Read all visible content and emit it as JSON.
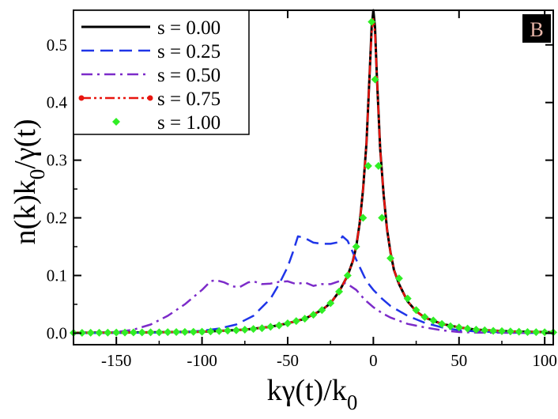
{
  "chart_data": {
    "type": "line",
    "panel_label": "B",
    "xlabel": "kγ(t)/k",
    "xlabel_sub": "0",
    "ylabel": "n(k)k",
    "ylabel_sub": "0",
    "ylabel_tail": "/γ(t)",
    "xlim": [
      -175,
      105
    ],
    "ylim": [
      -0.02,
      0.56
    ],
    "xticks": [
      -150,
      -100,
      -50,
      0,
      50,
      100
    ],
    "xtick_labels": [
      "-150",
      "-100",
      "-50",
      "0",
      "50",
      "100"
    ],
    "yticks": [
      0.0,
      0.1,
      0.2,
      0.3,
      0.4,
      0.5
    ],
    "ytick_labels": [
      "0.0",
      "0.1",
      "0.2",
      "0.3",
      "0.4",
      "0.5"
    ],
    "legend_position": "top-left",
    "series": [
      {
        "name": "s = 0.00",
        "color": "#000000",
        "style": "solid",
        "points": [
          [
            -175,
            0.0005
          ],
          [
            -150,
            0.001
          ],
          [
            -125,
            0.0015
          ],
          [
            -100,
            0.0025
          ],
          [
            -75,
            0.006
          ],
          [
            -60,
            0.011
          ],
          [
            -50,
            0.017
          ],
          [
            -40,
            0.025
          ],
          [
            -30,
            0.04
          ],
          [
            -25,
            0.052
          ],
          [
            -20,
            0.072
          ],
          [
            -15,
            0.1
          ],
          [
            -12,
            0.125
          ],
          [
            -10,
            0.15
          ],
          [
            -8,
            0.19
          ],
          [
            -6,
            0.25
          ],
          [
            -4,
            0.33
          ],
          [
            -2,
            0.46
          ],
          [
            -1,
            0.53
          ],
          [
            0,
            0.56
          ],
          [
            1,
            0.53
          ],
          [
            2,
            0.45
          ],
          [
            4,
            0.32
          ],
          [
            6,
            0.24
          ],
          [
            8,
            0.18
          ],
          [
            10,
            0.14
          ],
          [
            12,
            0.11
          ],
          [
            15,
            0.085
          ],
          [
            20,
            0.055
          ],
          [
            25,
            0.038
          ],
          [
            30,
            0.027
          ],
          [
            40,
            0.016
          ],
          [
            50,
            0.01
          ],
          [
            60,
            0.006
          ],
          [
            80,
            0.003
          ],
          [
            105,
            0.0015
          ]
        ]
      },
      {
        "name": "s = 0.25",
        "color": "#1f35e8",
        "style": "dashed",
        "points": [
          [
            -175,
            0.0
          ],
          [
            -150,
            0.0005
          ],
          [
            -125,
            0.001
          ],
          [
            -110,
            0.002
          ],
          [
            -100,
            0.004
          ],
          [
            -90,
            0.008
          ],
          [
            -80,
            0.015
          ],
          [
            -70,
            0.03
          ],
          [
            -60,
            0.06
          ],
          [
            -55,
            0.085
          ],
          [
            -50,
            0.115
          ],
          [
            -47,
            0.14
          ],
          [
            -44,
            0.168
          ],
          [
            -40,
            0.165
          ],
          [
            -35,
            0.157
          ],
          [
            -30,
            0.155
          ],
          [
            -25,
            0.155
          ],
          [
            -20,
            0.158
          ],
          [
            -18,
            0.168
          ],
          [
            -15,
            0.16
          ],
          [
            -12,
            0.14
          ],
          [
            -8,
            0.115
          ],
          [
            -4,
            0.09
          ],
          [
            0,
            0.075
          ],
          [
            5,
            0.06
          ],
          [
            10,
            0.047
          ],
          [
            20,
            0.03
          ],
          [
            30,
            0.018
          ],
          [
            40,
            0.01
          ],
          [
            50,
            0.005
          ],
          [
            60,
            0.003
          ],
          [
            80,
            0.001
          ],
          [
            105,
            0.0
          ]
        ]
      },
      {
        "name": "s = 0.50",
        "color": "#7c2bc9",
        "style": "dashdot",
        "points": [
          [
            -175,
            0.0
          ],
          [
            -150,
            0.002
          ],
          [
            -140,
            0.006
          ],
          [
            -130,
            0.015
          ],
          [
            -120,
            0.03
          ],
          [
            -110,
            0.05
          ],
          [
            -100,
            0.075
          ],
          [
            -95,
            0.09
          ],
          [
            -92,
            0.092
          ],
          [
            -87,
            0.088
          ],
          [
            -82,
            0.081
          ],
          [
            -78,
            0.08
          ],
          [
            -73,
            0.088
          ],
          [
            -70,
            0.09
          ],
          [
            -65,
            0.085
          ],
          [
            -60,
            0.086
          ],
          [
            -55,
            0.089
          ],
          [
            -50,
            0.09
          ],
          [
            -45,
            0.085
          ],
          [
            -40,
            0.088
          ],
          [
            -35,
            0.082
          ],
          [
            -30,
            0.085
          ],
          [
            -25,
            0.085
          ],
          [
            -20,
            0.09
          ],
          [
            -15,
            0.085
          ],
          [
            -10,
            0.075
          ],
          [
            -5,
            0.058
          ],
          [
            0,
            0.045
          ],
          [
            5,
            0.035
          ],
          [
            10,
            0.027
          ],
          [
            20,
            0.016
          ],
          [
            30,
            0.01
          ],
          [
            40,
            0.005
          ],
          [
            50,
            0.002
          ],
          [
            60,
            0.001
          ],
          [
            80,
            0.0005
          ],
          [
            105,
            0.0
          ]
        ]
      },
      {
        "name": "s = 0.75",
        "color": "#e8150f",
        "style": "dashdotdot",
        "points": [
          [
            -175,
            0.0005
          ],
          [
            -150,
            0.001
          ],
          [
            -125,
            0.0015
          ],
          [
            -100,
            0.0025
          ],
          [
            -75,
            0.006
          ],
          [
            -60,
            0.011
          ],
          [
            -50,
            0.017
          ],
          [
            -40,
            0.025
          ],
          [
            -30,
            0.04
          ],
          [
            -25,
            0.052
          ],
          [
            -20,
            0.072
          ],
          [
            -15,
            0.1
          ],
          [
            -12,
            0.125
          ],
          [
            -10,
            0.15
          ],
          [
            -8,
            0.19
          ],
          [
            -6,
            0.25
          ],
          [
            -4,
            0.33
          ],
          [
            -2,
            0.46
          ],
          [
            -1,
            0.52
          ],
          [
            0,
            0.545
          ],
          [
            1,
            0.52
          ],
          [
            2,
            0.45
          ],
          [
            4,
            0.32
          ],
          [
            6,
            0.24
          ],
          [
            8,
            0.18
          ],
          [
            10,
            0.14
          ],
          [
            12,
            0.11
          ],
          [
            15,
            0.085
          ],
          [
            20,
            0.055
          ],
          [
            25,
            0.038
          ],
          [
            30,
            0.027
          ],
          [
            40,
            0.016
          ],
          [
            50,
            0.01
          ],
          [
            60,
            0.006
          ],
          [
            80,
            0.003
          ],
          [
            105,
            0.0015
          ]
        ]
      },
      {
        "name": "s = 1.00",
        "color": "#30ee25",
        "style": "markers",
        "points": [
          [
            -175,
            0.0005
          ],
          [
            -170,
            0.0006
          ],
          [
            -165,
            0.0007
          ],
          [
            -160,
            0.0008
          ],
          [
            -155,
            0.0009
          ],
          [
            -150,
            0.001
          ],
          [
            -145,
            0.0011
          ],
          [
            -140,
            0.0012
          ],
          [
            -135,
            0.0013
          ],
          [
            -130,
            0.0014
          ],
          [
            -125,
            0.0015
          ],
          [
            -120,
            0.0017
          ],
          [
            -115,
            0.0019
          ],
          [
            -110,
            0.0021
          ],
          [
            -105,
            0.0023
          ],
          [
            -100,
            0.0025
          ],
          [
            -95,
            0.003
          ],
          [
            -90,
            0.0036
          ],
          [
            -85,
            0.0043
          ],
          [
            -80,
            0.005
          ],
          [
            -75,
            0.006
          ],
          [
            -70,
            0.0072
          ],
          [
            -65,
            0.0087
          ],
          [
            -60,
            0.011
          ],
          [
            -55,
            0.0135
          ],
          [
            -50,
            0.017
          ],
          [
            -45,
            0.021
          ],
          [
            -40,
            0.025
          ],
          [
            -35,
            0.032
          ],
          [
            -30,
            0.04
          ],
          [
            -25,
            0.052
          ],
          [
            -20,
            0.072
          ],
          [
            -15,
            0.1
          ],
          [
            -10,
            0.15
          ],
          [
            -6,
            0.2
          ],
          [
            -3,
            0.29
          ],
          [
            -1,
            0.54
          ],
          [
            1,
            0.44
          ],
          [
            3,
            0.29
          ],
          [
            5,
            0.2
          ],
          [
            10,
            0.13
          ],
          [
            15,
            0.095
          ],
          [
            20,
            0.06
          ],
          [
            25,
            0.04
          ],
          [
            30,
            0.028
          ],
          [
            35,
            0.022
          ],
          [
            40,
            0.016
          ],
          [
            45,
            0.012
          ],
          [
            50,
            0.01
          ],
          [
            55,
            0.008
          ],
          [
            60,
            0.006
          ],
          [
            65,
            0.005
          ],
          [
            70,
            0.004
          ],
          [
            75,
            0.0035
          ],
          [
            80,
            0.003
          ],
          [
            85,
            0.0025
          ],
          [
            90,
            0.002
          ],
          [
            95,
            0.0018
          ],
          [
            100,
            0.0016
          ],
          [
            105,
            0.0015
          ]
        ]
      }
    ]
  }
}
